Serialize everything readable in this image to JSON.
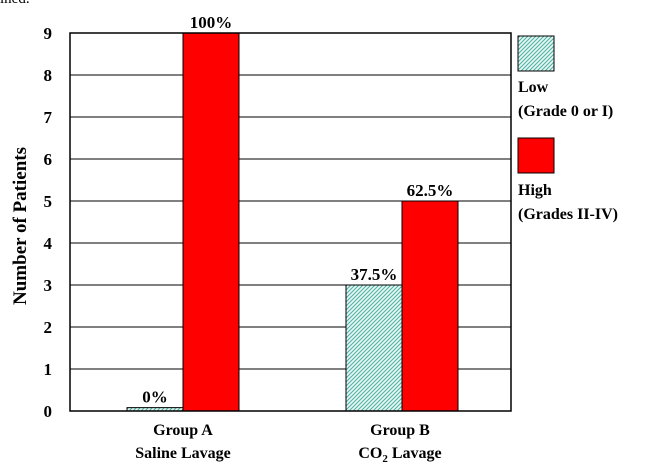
{
  "header_fragment": "ined.",
  "chart_data": {
    "type": "bar",
    "ylabel": "Number of Patients",
    "ylim": [
      0,
      9
    ],
    "yticks": [
      "0",
      "1",
      "2",
      "3",
      "4",
      "5",
      "6",
      "7",
      "8",
      "9"
    ],
    "grid": true,
    "legend_position": "right",
    "categories": [
      {
        "line1": "Group A",
        "line2": "Saline Lavage"
      },
      {
        "line1": "Group B",
        "line2_main": "CO",
        "line2_sub": "2",
        "line2_rest": " Lavage"
      }
    ],
    "series": [
      {
        "name_line1": "Low",
        "name_line2": "(Grade 0 or I)",
        "values": [
          0.08,
          3
        ],
        "labels": [
          "0%",
          "37.5%"
        ],
        "color": "#7ecfc4",
        "pattern": "diagonal-hatch"
      },
      {
        "name_line1": "High",
        "name_line2": "(Grades II-IV)",
        "values": [
          9,
          5
        ],
        "labels": [
          "100%",
          "62.5%"
        ],
        "color": "#ff0000",
        "pattern": "solid"
      }
    ]
  }
}
